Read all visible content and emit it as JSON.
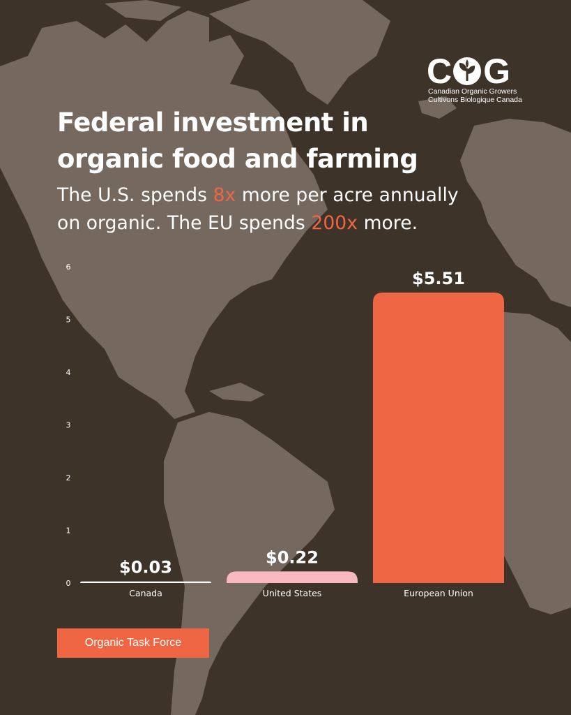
{
  "logo": {
    "wordmark_left": "C",
    "wordmark_right": "G",
    "line1": "Canadian Organic Growers",
    "line2": "Cultivons Biologique Canada",
    "icon": "sprout-icon"
  },
  "header": {
    "title_line1": "Federal investment in",
    "title_line2": "organic food and farming",
    "subtitle": {
      "line1_pre": "The U.S. spends ",
      "line1_highlight": "8x",
      "line1_post": " more per acre annually",
      "line2_pre": "on organic. The EU spends ",
      "line2_highlight": "200x",
      "line2_post": " more."
    }
  },
  "colors": {
    "background": "#3e3329",
    "map": "#75695f",
    "accent": "#ef6645",
    "canada_bar": "#ffffff",
    "us_bar": "#f7b8c0",
    "eu_bar": "#ef6645"
  },
  "chart_data": {
    "type": "bar",
    "categories": [
      "Canada",
      "United States",
      "European Union"
    ],
    "values": [
      0.03,
      0.22,
      5.51
    ],
    "value_labels": [
      "$0.03",
      "$0.22",
      "$5.51"
    ],
    "bar_colors": [
      "#ffffff",
      "#f7b8c0",
      "#ef6645"
    ],
    "ylim": [
      0,
      6
    ],
    "yticks": [
      0,
      1,
      2,
      3,
      4,
      5,
      6
    ],
    "grid": false,
    "legend": "none"
  },
  "source": {
    "label": "Organic Task Force"
  }
}
